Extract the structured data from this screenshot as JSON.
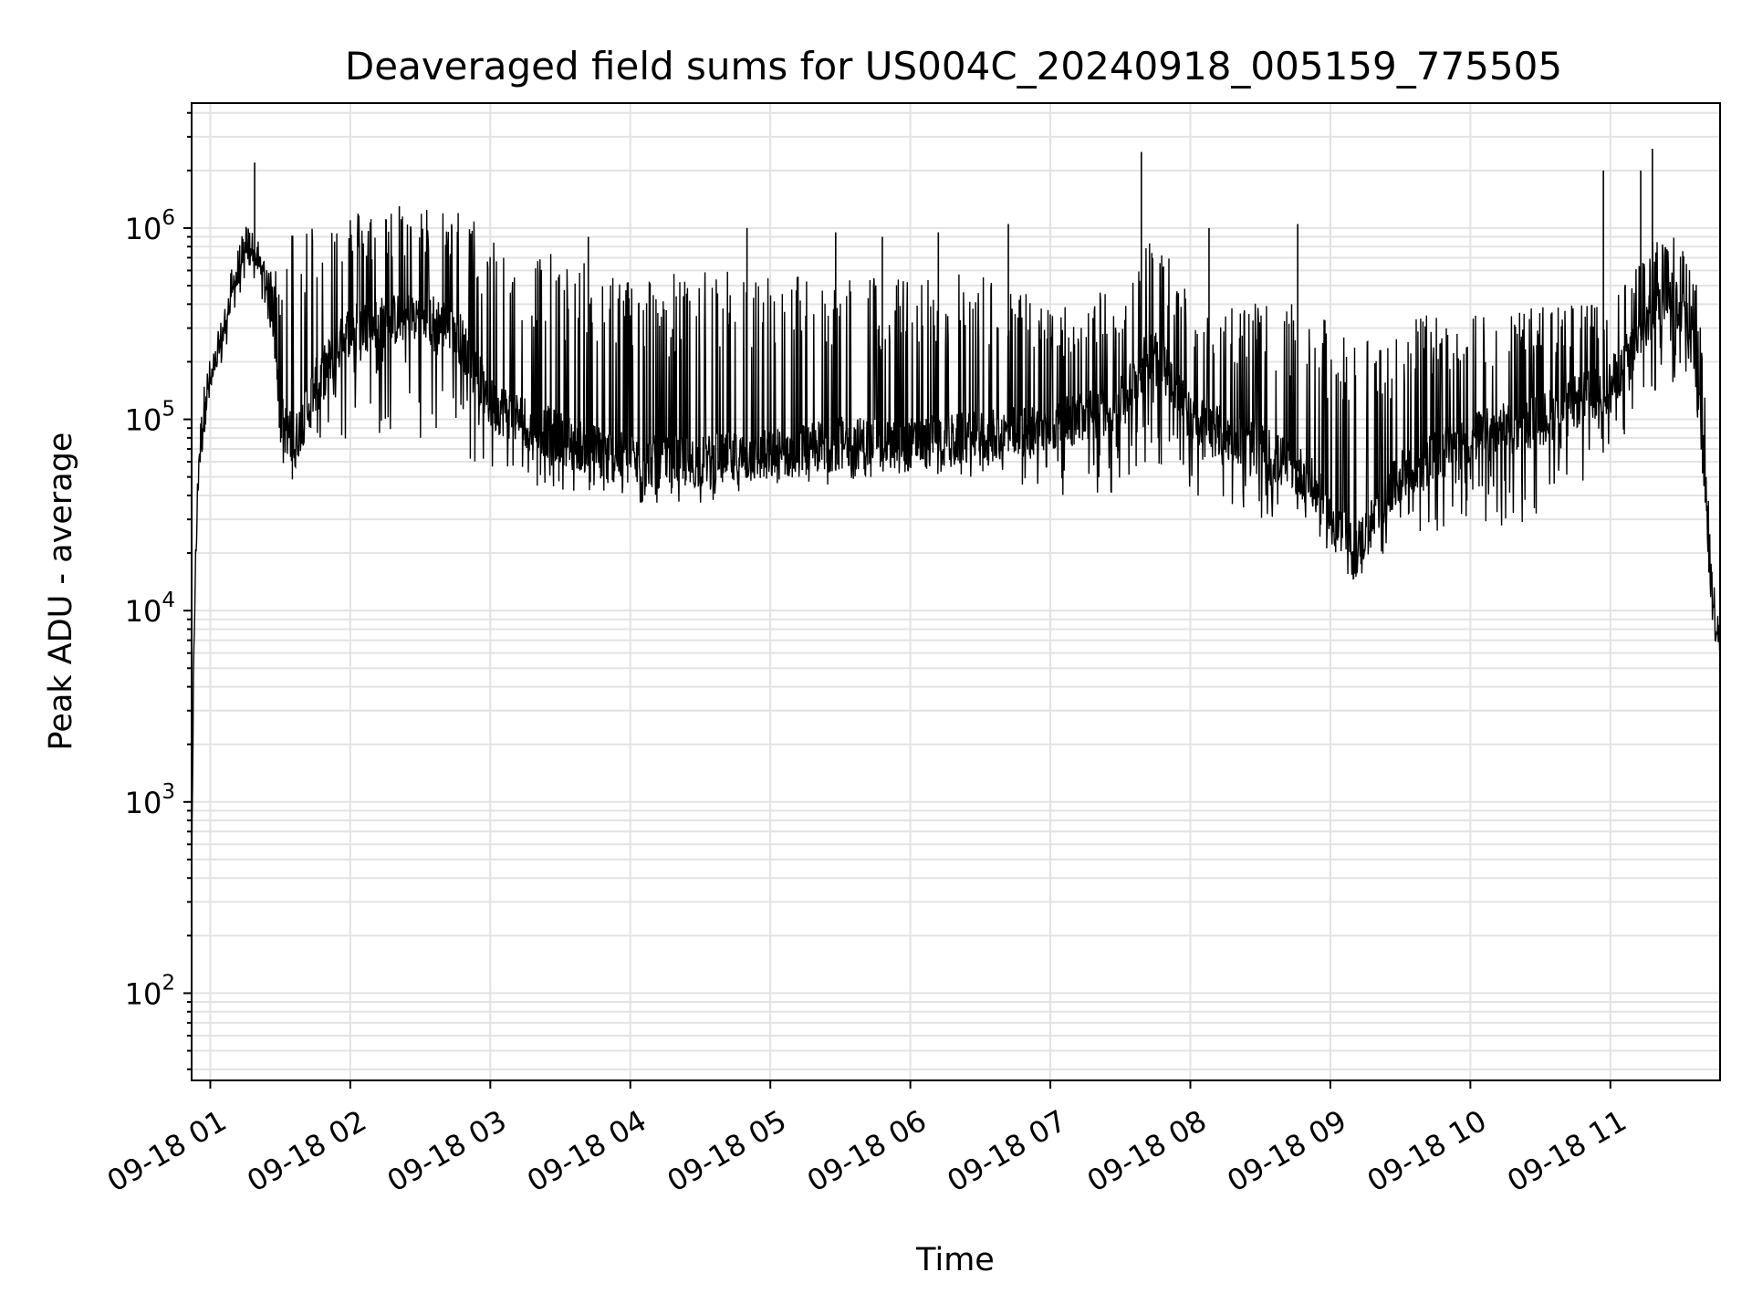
{
  "chart_data": {
    "type": "line",
    "title": "Deaveraged field sums for US004C_20240918_005159_775505",
    "xlabel": "Time",
    "ylabel": "Peak ADU - average",
    "yscale": "log",
    "ylim": [
      35,
      4500000
    ],
    "xlim": [
      "2024-09-18 00:52",
      "2024-09-18 11:47"
    ],
    "grid": true,
    "line_color": "#000000",
    "x_tick_labels": [
      "09-18 01",
      "09-18 02",
      "09-18 03",
      "09-18 04",
      "09-18 05",
      "09-18 06",
      "09-18 07",
      "09-18 08",
      "09-18 09",
      "09-18 10",
      "09-18 11"
    ],
    "x_tick_times": [
      "2024-09-18 01:00",
      "2024-09-18 02:00",
      "2024-09-18 03:00",
      "2024-09-18 04:00",
      "2024-09-18 05:00",
      "2024-09-18 06:00",
      "2024-09-18 07:00",
      "2024-09-18 08:00",
      "2024-09-18 09:00",
      "2024-09-18 10:00",
      "2024-09-18 11:00"
    ],
    "y_ticks": [
      {
        "value": 100,
        "base": "10",
        "exp": "2"
      },
      {
        "value": 1000,
        "base": "10",
        "exp": "3"
      },
      {
        "value": 10000,
        "base": "10",
        "exp": "4"
      },
      {
        "value": 100000,
        "base": "10",
        "exp": "5"
      },
      {
        "value": 1000000,
        "base": "10",
        "exp": "6"
      }
    ],
    "series": [
      {
        "x": [
          "2024-09-18 00:52",
          "2024-09-18 00:53",
          "2024-09-18 00:55",
          "2024-09-18 00:58",
          "2024-09-18 01:03",
          "2024-09-18 01:10",
          "2024-09-18 01:16",
          "2024-09-18 01:22",
          "2024-09-18 01:27",
          "2024-09-18 01:30",
          "2024-09-18 01:36",
          "2024-09-18 01:45",
          "2024-09-18 02:00",
          "2024-09-18 02:30",
          "2024-09-18 02:45",
          "2024-09-18 03:00",
          "2024-09-18 03:30",
          "2024-09-18 04:00",
          "2024-09-18 04:30",
          "2024-09-18 05:00",
          "2024-09-18 05:30",
          "2024-09-18 06:00",
          "2024-09-18 06:30",
          "2024-09-18 07:00",
          "2024-09-18 07:30",
          "2024-09-18 07:45",
          "2024-09-18 08:00",
          "2024-09-18 08:30",
          "2024-09-18 08:50",
          "2024-09-18 09:10",
          "2024-09-18 09:30",
          "2024-09-18 10:00",
          "2024-09-18 10:30",
          "2024-09-18 11:00",
          "2024-09-18 11:15",
          "2024-09-18 11:25",
          "2024-09-18 11:35",
          "2024-09-18 11:40",
          "2024-09-18 11:43",
          "2024-09-18 11:47"
        ],
        "base": [
          300,
          8000,
          60000,
          130000,
          200000,
          500000,
          800000,
          600000,
          350000,
          100000,
          75000,
          150000,
          300000,
          350000,
          300000,
          120000,
          80000,
          60000,
          60000,
          65000,
          75000,
          75000,
          80000,
          90000,
          120000,
          250000,
          100000,
          70000,
          50000,
          20000,
          50000,
          80000,
          100000,
          150000,
          300000,
          500000,
          300000,
          60000,
          14000,
          6000
        ],
        "low": [
          300,
          8000,
          60000,
          130000,
          200000,
          500000,
          750000,
          550000,
          300000,
          60000,
          45000,
          60000,
          80000,
          80000,
          70000,
          50000,
          40000,
          35000,
          35000,
          40000,
          45000,
          50000,
          50000,
          40000,
          40000,
          60000,
          40000,
          30000,
          30000,
          13000,
          25000,
          25000,
          30000,
          60000,
          120000,
          150000,
          150000,
          50000,
          11000,
          6000
        ],
        "high": [
          300,
          8000,
          60000,
          130000,
          200000,
          500000,
          850000,
          650000,
          600000,
          900000,
          1150000,
          1200000,
          1250000,
          1300000,
          1300000,
          1000000,
          700000,
          600000,
          600000,
          600000,
          600000,
          550000,
          600000,
          400000,
          500000,
          1000000,
          450000,
          400000,
          400000,
          250000,
          350000,
          350000,
          400000,
          400000,
          800000,
          1000000,
          900000,
          200000,
          20000,
          9000
        ],
        "spikes": [
          {
            "x": "2024-09-18 01:19",
            "y": 2200000
          },
          {
            "x": "2024-09-18 02:21",
            "y": 1300000
          },
          {
            "x": "2024-09-18 03:42",
            "y": 900000
          },
          {
            "x": "2024-09-18 04:50",
            "y": 1000000
          },
          {
            "x": "2024-09-18 05:28",
            "y": 950000
          },
          {
            "x": "2024-09-18 05:48",
            "y": 900000
          },
          {
            "x": "2024-09-18 06:12",
            "y": 950000
          },
          {
            "x": "2024-09-18 06:42",
            "y": 1050000
          },
          {
            "x": "2024-09-18 07:39",
            "y": 2500000
          },
          {
            "x": "2024-09-18 08:08",
            "y": 1000000
          },
          {
            "x": "2024-09-18 08:46",
            "y": 1050000
          },
          {
            "x": "2024-09-18 10:57",
            "y": 2000000
          },
          {
            "x": "2024-09-18 11:18",
            "y": 2600000
          },
          {
            "x": "2024-09-18 11:13",
            "y": 2000000
          }
        ]
      }
    ]
  }
}
